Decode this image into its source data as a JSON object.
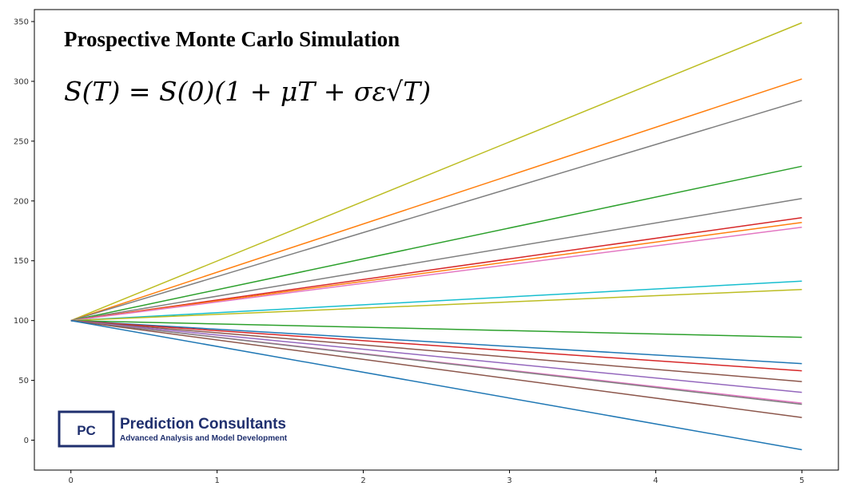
{
  "chart_data": {
    "type": "line",
    "title": "Prospective Monte Carlo Simulation",
    "formula": "S(T) = S(0)(1 + μT + σε√T)",
    "xlabel": "",
    "ylabel": "",
    "xlim": [
      -0.25,
      5.25
    ],
    "ylim": [
      -25,
      360
    ],
    "x_ticks": [
      0,
      1,
      2,
      3,
      4,
      5
    ],
    "y_ticks": [
      0,
      50,
      100,
      150,
      200,
      250,
      300,
      350
    ],
    "grid": false,
    "legend": "none",
    "x": [
      0,
      5
    ],
    "series": [
      {
        "values": [
          100,
          349
        ],
        "color": "#bcbd22"
      },
      {
        "values": [
          100,
          302
        ],
        "color": "#ff7f0e"
      },
      {
        "values": [
          100,
          284
        ],
        "color": "#7f7f7f"
      },
      {
        "values": [
          100,
          229
        ],
        "color": "#2ca02c"
      },
      {
        "values": [
          100,
          202
        ],
        "color": "#7f7f7f"
      },
      {
        "values": [
          100,
          186
        ],
        "color": "#d62728"
      },
      {
        "values": [
          100,
          182
        ],
        "color": "#ff7f0e"
      },
      {
        "values": [
          100,
          178
        ],
        "color": "#e377c2"
      },
      {
        "values": [
          100,
          133
        ],
        "color": "#17becf"
      },
      {
        "values": [
          100,
          126
        ],
        "color": "#bcbd22"
      },
      {
        "values": [
          100,
          86
        ],
        "color": "#2ca02c"
      },
      {
        "values": [
          100,
          64
        ],
        "color": "#1f77b4"
      },
      {
        "values": [
          100,
          58
        ],
        "color": "#d62728"
      },
      {
        "values": [
          100,
          49
        ],
        "color": "#8c564b"
      },
      {
        "values": [
          100,
          40
        ],
        "color": "#9467bd"
      },
      {
        "values": [
          100,
          31
        ],
        "color": "#e377c2"
      },
      {
        "values": [
          100,
          30
        ],
        "color": "#7f7f7f"
      },
      {
        "values": [
          100,
          19
        ],
        "color": "#8c564b"
      },
      {
        "values": [
          100,
          -8
        ],
        "color": "#1f77b4"
      }
    ]
  },
  "logo": {
    "mark": "PC",
    "company": "Prediction Consultants",
    "tagline": "Advanced Analysis and Model Development",
    "color": "#1f2f6e"
  }
}
